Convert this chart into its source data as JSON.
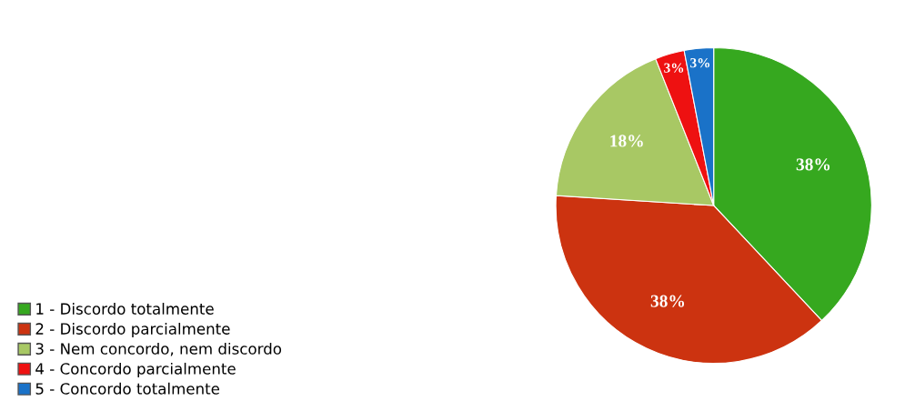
{
  "chart_data": {
    "type": "pie",
    "categories": [
      "1 - Discordo totalmente",
      "2 - Discordo parcialmente",
      "3 - Nem concordo, nem discordo",
      "4 - Concordo parcialmente",
      "5 - Concordo totalmente"
    ],
    "values": [
      38,
      38,
      18,
      3,
      3
    ],
    "value_labels": [
      "38%",
      "38%",
      "18%",
      "3%",
      "3%"
    ],
    "colors": [
      "#36a81f",
      "#cc3310",
      "#a8c864",
      "#ee1111",
      "#1a72c8"
    ],
    "legend": "bottom left"
  }
}
